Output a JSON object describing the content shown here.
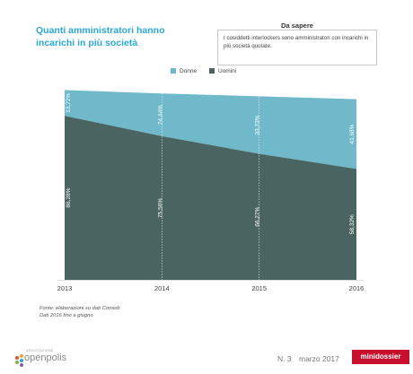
{
  "chart_data": {
    "type": "area",
    "title": "Quanti amministratori hanno incarichi in più società",
    "categories": [
      "2013",
      "2014",
      "2015",
      "2016"
    ],
    "series": [
      {
        "name": "Uomini",
        "color": "#4a6561",
        "values": [
          86.28,
          75.56,
          66.27,
          58.32
        ],
        "labels": [
          "86,28%",
          "75,56%",
          "66,27%",
          "58,32%"
        ]
      },
      {
        "name": "Donne",
        "color": "#6fb9cb",
        "values": [
          13.72,
          24.44,
          33.73,
          41.68
        ],
        "labels": [
          "13,72%",
          "24,44%",
          "33,73%",
          "41,68%"
        ]
      }
    ],
    "stacked": true,
    "ylim": [
      0,
      100
    ],
    "legend_position": "top",
    "legend": [
      "Donne",
      "Uomini"
    ]
  },
  "info_box": {
    "title": "Da sapere",
    "text": "I cosiddetti interlockers sono amministratori con incarichi in più società quotate."
  },
  "source": {
    "line1": "Fonte: elaborazioni su dati Consob",
    "line2": "Dati 2016 fino a giugno"
  },
  "footer": {
    "association": "ASSOCIAZIONE",
    "brand": "openpolis",
    "issue": "N. 3",
    "date": "marzo 2017",
    "badge": "minidossier"
  },
  "colors": {
    "title": "#29a9d6",
    "donne": "#6fb9cb",
    "uomini": "#4a6561",
    "badge": "#c8102e"
  }
}
